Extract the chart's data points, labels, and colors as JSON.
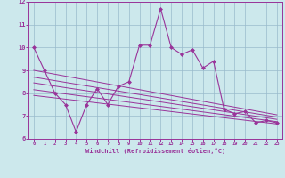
{
  "xlabel": "Windchill (Refroidissement éolien,°C)",
  "bg_color": "#cce8ec",
  "line_color": "#993399",
  "grid_color": "#99bbcc",
  "xlim": [
    -0.5,
    23.5
  ],
  "ylim": [
    6,
    12
  ],
  "xticks": [
    0,
    1,
    2,
    3,
    4,
    5,
    6,
    7,
    8,
    9,
    10,
    11,
    12,
    13,
    14,
    15,
    16,
    17,
    18,
    19,
    20,
    21,
    22,
    23
  ],
  "yticks": [
    6,
    7,
    8,
    9,
    10,
    11,
    12
  ],
  "series": {
    "main": {
      "x": [
        0,
        1,
        2,
        3,
        4,
        5,
        6,
        7,
        8,
        9,
        10,
        11,
        12,
        13,
        14,
        15,
        16,
        17,
        18,
        19,
        20,
        21,
        22,
        23
      ],
      "y": [
        10.0,
        9.0,
        8.0,
        7.5,
        6.3,
        7.5,
        8.2,
        7.5,
        8.3,
        8.5,
        10.1,
        10.1,
        11.7,
        10.0,
        9.7,
        9.9,
        9.1,
        9.4,
        7.3,
        7.1,
        7.2,
        6.7,
        6.8,
        6.7
      ]
    },
    "linear1": {
      "x": [
        0,
        23
      ],
      "y": [
        9.0,
        7.05
      ]
    },
    "linear2": {
      "x": [
        0,
        23
      ],
      "y": [
        8.7,
        6.95
      ]
    },
    "linear3": {
      "x": [
        0,
        23
      ],
      "y": [
        8.45,
        6.85
      ]
    },
    "linear4": {
      "x": [
        0,
        23
      ],
      "y": [
        8.15,
        6.75
      ]
    },
    "linear5": {
      "x": [
        0,
        23
      ],
      "y": [
        7.9,
        6.65
      ]
    }
  }
}
